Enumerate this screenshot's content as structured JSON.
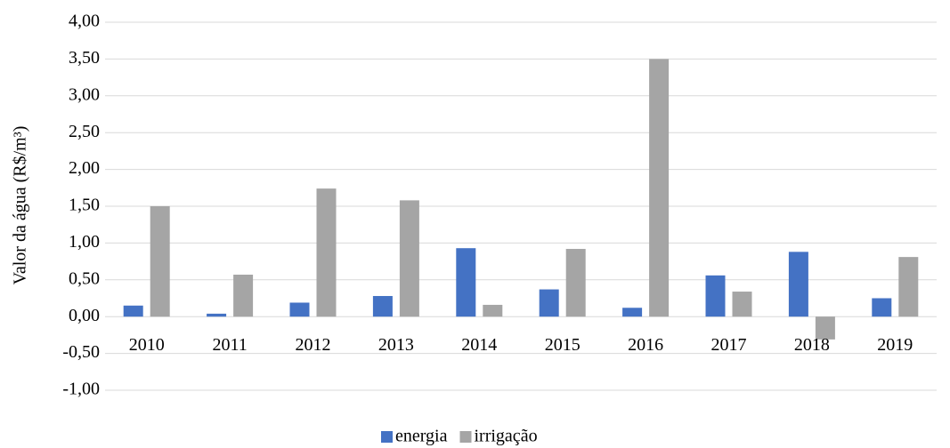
{
  "chart_data": {
    "type": "bar",
    "y_label": "Valor da água (R$/m³)",
    "categories": [
      "2010",
      "2011",
      "2012",
      "2013",
      "2014",
      "2015",
      "2016",
      "2017",
      "2018",
      "2019"
    ],
    "series": [
      {
        "name": "energia",
        "color": "#4472c4",
        "values": [
          0.15,
          0.04,
          0.19,
          0.28,
          0.93,
          0.37,
          0.12,
          0.56,
          0.88,
          0.25
        ]
      },
      {
        "name": "irrigação",
        "color": "#a5a5a5",
        "values": [
          1.5,
          0.57,
          1.74,
          1.58,
          0.16,
          0.92,
          3.5,
          0.34,
          -0.31,
          0.81
        ]
      }
    ],
    "ylim": [
      -1,
      4
    ],
    "yticks": [
      {
        "value": -1,
        "label": "-1,00"
      },
      {
        "value": -0.5,
        "label": "-0,50"
      },
      {
        "value": 0,
        "label": "0,00"
      },
      {
        "value": 0.5,
        "label": "0,50"
      },
      {
        "value": 1,
        "label": "1,00"
      },
      {
        "value": 1.5,
        "label": "1,50"
      },
      {
        "value": 2,
        "label": "2,00"
      },
      {
        "value": 2.5,
        "label": "2,50"
      },
      {
        "value": 3,
        "label": "3,00"
      },
      {
        "value": 3.5,
        "label": "3,50"
      },
      {
        "value": 4,
        "label": "4,00"
      }
    ],
    "grid": true,
    "legend": "bottom"
  }
}
